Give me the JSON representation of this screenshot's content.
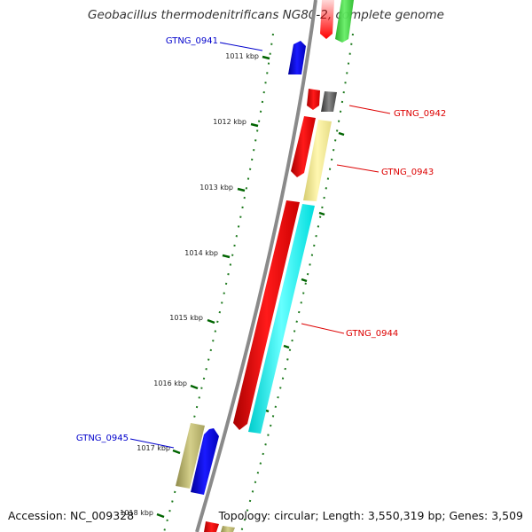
{
  "title": "Geobacillus thermodenitrificans NG80-2, complete genome",
  "footer": {
    "accession": "Accession: NC_009328",
    "topology": "Topology: circular; Length: 3,550,319 bp; Genes: 3,509"
  },
  "ticks": [
    "1011 kbp",
    "1012 kbp",
    "1013 kbp",
    "1014 kbp",
    "1015 kbp",
    "1016 kbp",
    "1017 kbp",
    "1018 kbp"
  ],
  "gene_labels": [
    {
      "id": "GTNG_0941",
      "color": "#0000cc"
    },
    {
      "id": "GTNG_0942",
      "color": "#dd0000"
    },
    {
      "id": "GTNG_0943",
      "color": "#dd0000"
    },
    {
      "id": "GTNG_0944",
      "color": "#dd0000"
    },
    {
      "id": "GTNG_0945",
      "color": "#0000cc"
    }
  ],
  "colors": {
    "backbone": "#8a8a8a",
    "red_gene": "#ff0000",
    "blue_gene": "#0000ee",
    "cyan_gene": "#00ffff",
    "khaki_gene": "#f0e68c",
    "olive_gene": "#bdb76b",
    "gray_gene": "#555555",
    "green_gene": "#33cc33",
    "tick": "#006400"
  }
}
